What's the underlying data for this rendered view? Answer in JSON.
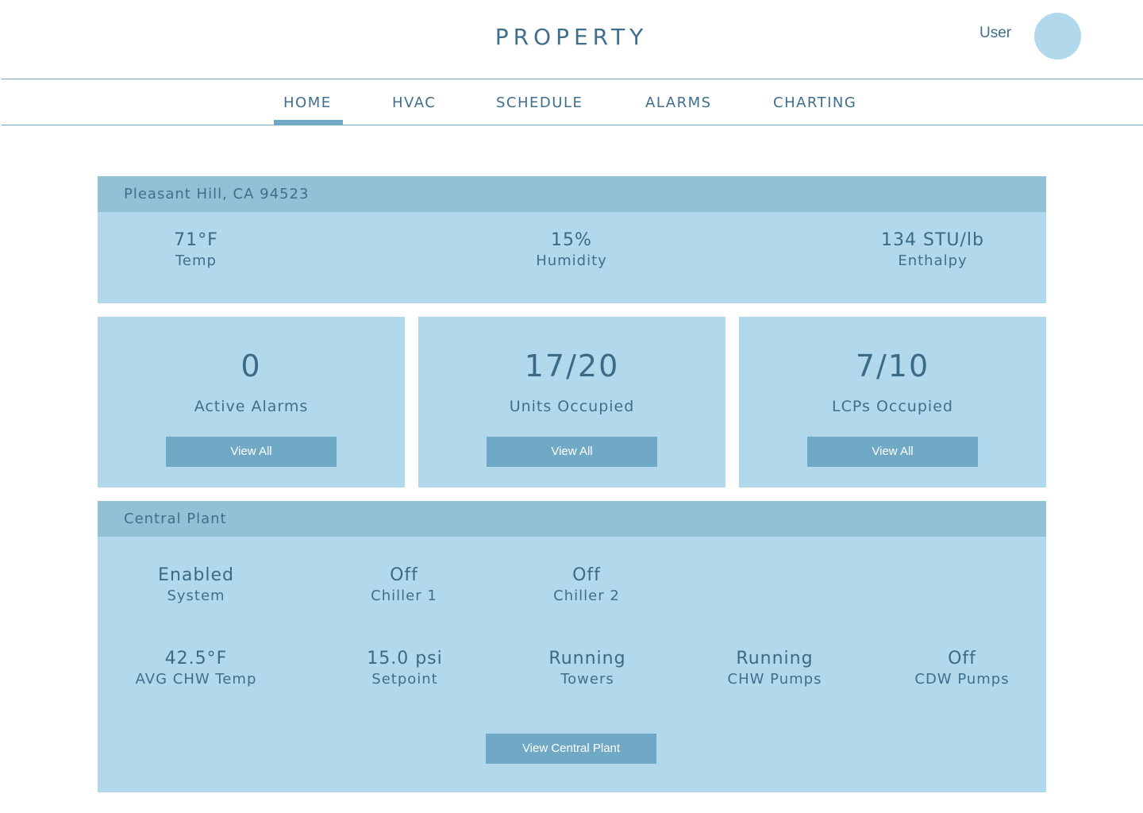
{
  "header": {
    "title": "PROPERTY",
    "user_label": "User"
  },
  "nav": {
    "items": [
      "HOME",
      "HVAC",
      "SCHEDULE",
      "ALARMS",
      "CHARTING"
    ],
    "active": "HOME"
  },
  "weather": {
    "location": "Pleasant Hill, CA 94523",
    "stats": [
      {
        "value": "71°F",
        "label": "Temp"
      },
      {
        "value": "15%",
        "label": "Humidity"
      },
      {
        "value": "134 STU/lb",
        "label": "Enthalpy"
      }
    ]
  },
  "cards": [
    {
      "value": "0",
      "label": "Active Alarms",
      "button": "View All"
    },
    {
      "value": "17/20",
      "label": "Units Occupied",
      "button": "View All"
    },
    {
      "value": "7/10",
      "label": "LCPs Occupied",
      "button": "View All"
    }
  ],
  "central_plant": {
    "title": "Central Plant",
    "row1": [
      {
        "value": "Enabled",
        "label": "System"
      },
      {
        "value": "Off",
        "label": "Chiller 1"
      },
      {
        "value": "Off",
        "label": "Chiller 2"
      }
    ],
    "row2": [
      {
        "value": "42.5°F",
        "label": "AVG CHW Temp"
      },
      {
        "value": "15.0 psi",
        "label": "Setpoint"
      },
      {
        "value": "Running",
        "label": "Towers"
      },
      {
        "value": "Running",
        "label": "CHW Pumps"
      },
      {
        "value": "Off",
        "label": "CDW Pumps"
      }
    ],
    "button": "View Central Plant"
  },
  "colors": {
    "panel": "#b1d9eb",
    "panel_header": "#92c1d5",
    "button": "#6fa9c5",
    "text": "#3f6f8c"
  }
}
